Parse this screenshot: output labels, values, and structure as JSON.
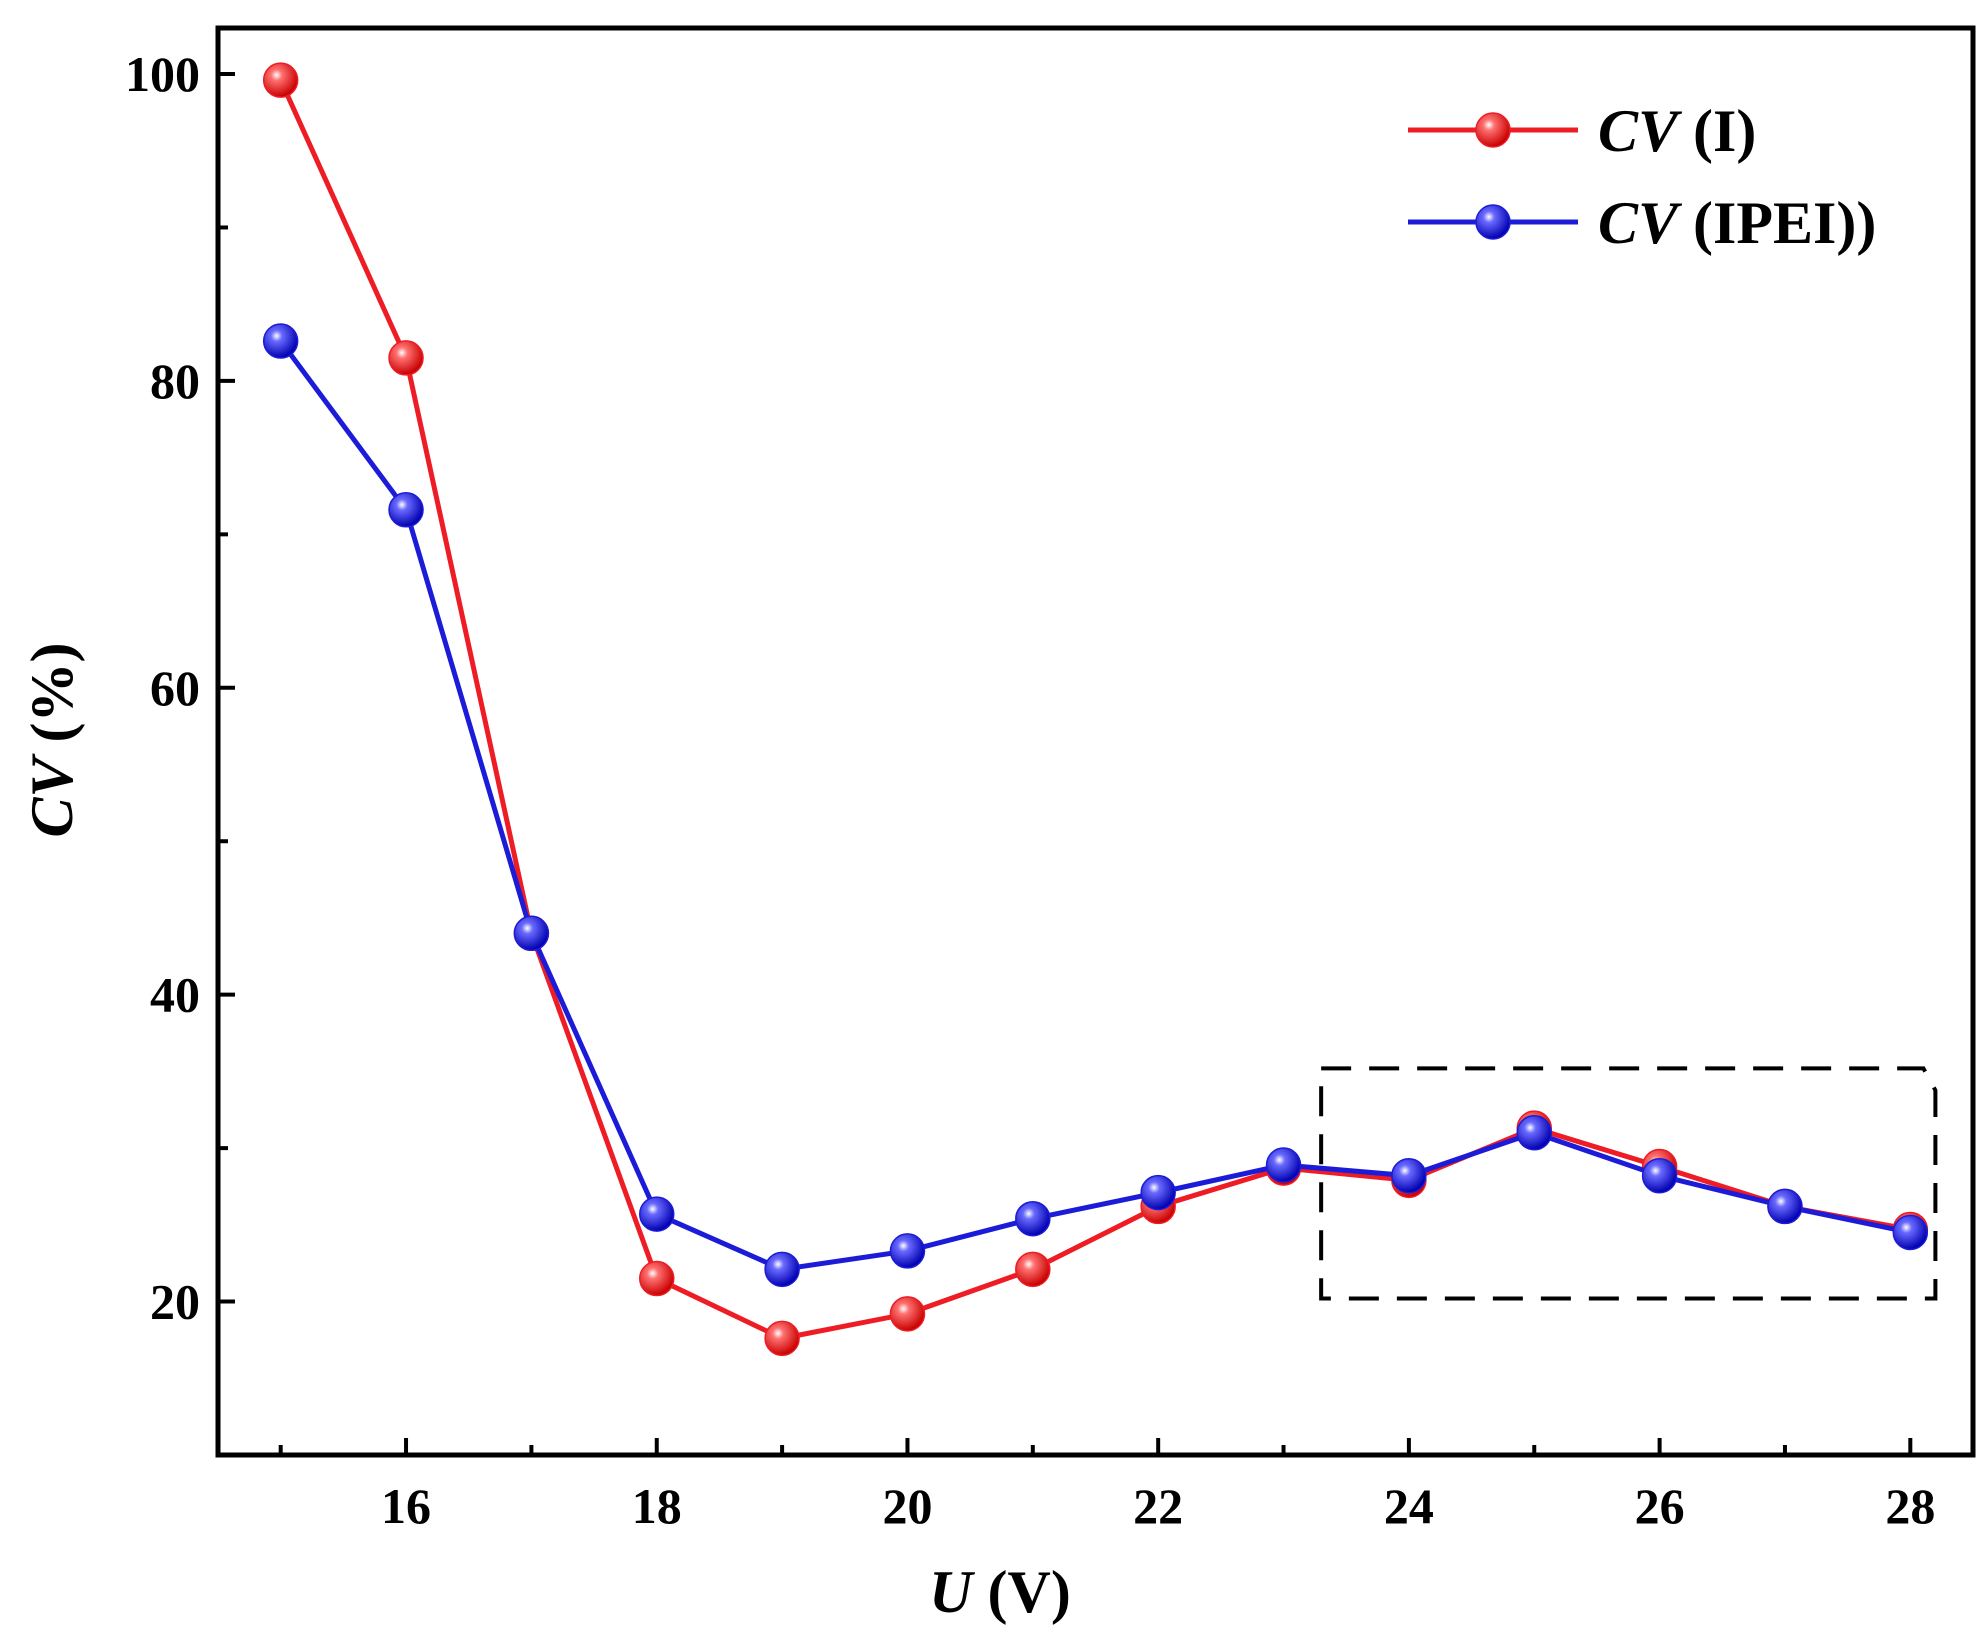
{
  "chart_data": {
    "type": "line",
    "title": "",
    "xlabel": {
      "var": "U",
      "unit": " (V)"
    },
    "ylabel": {
      "var": "CV",
      "unit": " (%)"
    },
    "xlim": [
      14.5,
      28.5
    ],
    "ylim": [
      10,
      103
    ],
    "x_ticks": [
      16,
      18,
      20,
      22,
      24,
      26,
      28
    ],
    "x_minor_ticks": [
      15,
      17,
      19,
      21,
      23,
      25,
      27
    ],
    "y_ticks": [
      20,
      40,
      60,
      80,
      100
    ],
    "y_minor_ticks": [
      30,
      50,
      70,
      90
    ],
    "x": [
      15,
      16,
      17,
      18,
      19,
      20,
      21,
      22,
      23,
      24,
      25,
      26,
      27,
      28
    ],
    "series": [
      {
        "name_var": "CV",
        "name_suffix": " (I)",
        "color": "#ee1c25",
        "values": [
          99.6,
          81.5,
          44.0,
          21.5,
          17.6,
          19.2,
          22.1,
          26.2,
          28.7,
          27.9,
          31.3,
          28.8,
          26.2,
          24.7
        ]
      },
      {
        "name_var": "CV",
        "name_suffix": " (IPEI))",
        "color": "#1c1cd8",
        "values": [
          82.6,
          71.6,
          44.0,
          25.7,
          22.1,
          23.3,
          25.4,
          27.1,
          28.9,
          28.2,
          31.0,
          28.2,
          26.2,
          24.5
        ]
      }
    ],
    "annotation": {
      "type": "dashed-box",
      "x_range": [
        23.3,
        28.2
      ],
      "y_range": [
        20.2,
        35.2
      ]
    },
    "legend_position": "top-right"
  }
}
